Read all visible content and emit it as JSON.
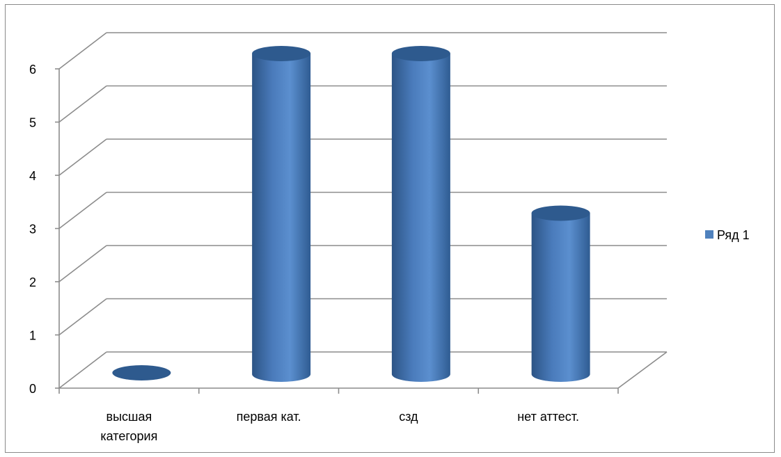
{
  "chart_data": {
    "type": "bar",
    "style": "3d-cylinder",
    "title": "",
    "xlabel": "",
    "ylabel": "",
    "categories": [
      [
        "высшая",
        "категория"
      ],
      [
        "первая кат."
      ],
      [
        "сзд"
      ],
      [
        "нет аттест."
      ]
    ],
    "series": [
      {
        "name": "Ряд 1",
        "values": [
          0,
          6,
          6,
          3
        ],
        "color": "#4f81bd"
      }
    ],
    "ylim": [
      0,
      6
    ],
    "yticks": [
      "0",
      "1",
      "2",
      "3",
      "4",
      "5",
      "6"
    ],
    "grid": true,
    "legend_position": "right"
  },
  "colors": {
    "gridline": "#8c8c8c",
    "frame": "#8a8a8a",
    "bar_top": "#2e5a8e",
    "bar_dark": "#2c5485",
    "bar_light": "#5b8fcf"
  }
}
